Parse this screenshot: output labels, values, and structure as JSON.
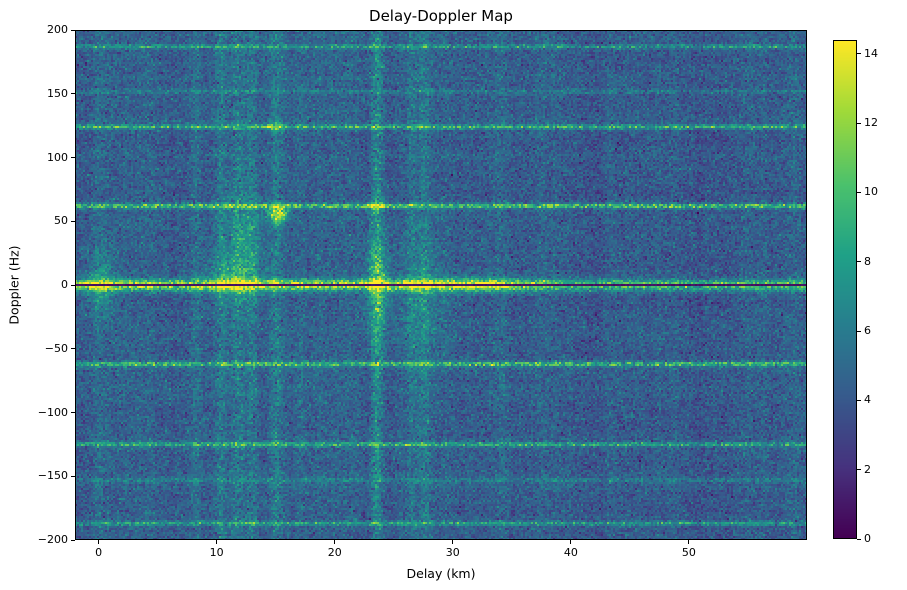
{
  "chart_data": {
    "type": "heatmap",
    "title": "Delay-Doppler Map",
    "xlabel": "Delay (km)",
    "ylabel": "Doppler (Hz)",
    "xlim": [
      -2,
      60
    ],
    "ylim": [
      -200,
      200
    ],
    "x_ticks": [
      {
        "value": 0,
        "label": "0"
      },
      {
        "value": 10,
        "label": "10"
      },
      {
        "value": 20,
        "label": "20"
      },
      {
        "value": 30,
        "label": "30"
      },
      {
        "value": 40,
        "label": "40"
      },
      {
        "value": 50,
        "label": "50"
      }
    ],
    "y_ticks": [
      {
        "value": 200,
        "label": "200"
      },
      {
        "value": 150,
        "label": "150"
      },
      {
        "value": 100,
        "label": "100"
      },
      {
        "value": 50,
        "label": "50"
      },
      {
        "value": 0,
        "label": "0"
      },
      {
        "value": -50,
        "label": "−50"
      },
      {
        "value": -100,
        "label": "−100"
      },
      {
        "value": -150,
        "label": "−150"
      },
      {
        "value": -200,
        "label": "−200"
      }
    ],
    "colormap": "viridis",
    "vmin": 0,
    "vmax": 14.4,
    "colorbar_ticks": [
      0,
      2,
      4,
      6,
      8,
      10,
      12,
      14
    ],
    "noise": {
      "background": 4.3,
      "std": 0.95
    },
    "horizontal_lines": [
      {
        "doppler": 187,
        "intensity": 4.0,
        "width": 1.2
      },
      {
        "doppler": 152,
        "intensity": 1.8,
        "width": 1.2
      },
      {
        "doppler": 124,
        "intensity": 5.2,
        "width": 1.2
      },
      {
        "doppler": 62,
        "intensity": 6.2,
        "width": 1.3
      },
      {
        "doppler": -62,
        "intensity": 5.6,
        "width": 1.3
      },
      {
        "doppler": -125,
        "intensity": 4.8,
        "width": 1.2
      },
      {
        "doppler": -153,
        "intensity": 1.9,
        "width": 1.2
      },
      {
        "doppler": -187,
        "intensity": 3.8,
        "width": 1.2
      }
    ],
    "vertical_streaks": [
      {
        "delay": 0.1,
        "intensity": 0.9,
        "width": 0.35
      },
      {
        "delay": 4.2,
        "intensity": 0.7,
        "width": 0.35
      },
      {
        "delay": 8.2,
        "intensity": 1.1,
        "width": 0.35
      },
      {
        "delay": 10.4,
        "intensity": 1.8,
        "width": 0.35
      },
      {
        "delay": 11.8,
        "intensity": 2.2,
        "width": 0.4
      },
      {
        "delay": 13.0,
        "intensity": 1.8,
        "width": 0.35
      },
      {
        "delay": 15.1,
        "intensity": 2.0,
        "width": 0.35
      },
      {
        "delay": 17.0,
        "intensity": 0.8,
        "width": 0.35
      },
      {
        "delay": 23.6,
        "intensity": 3.0,
        "width": 0.35
      },
      {
        "delay": 26.5,
        "intensity": 1.3,
        "width": 0.35
      },
      {
        "delay": 27.6,
        "intensity": 1.6,
        "width": 0.35
      },
      {
        "delay": 34.0,
        "intensity": 0.9,
        "width": 0.35
      }
    ],
    "bright_spots": [
      {
        "delay": 15.2,
        "doppler": 56,
        "intensity": 9.0,
        "sigma_delay": 0.6,
        "sigma_doppler": 4.5
      },
      {
        "delay": 14.9,
        "doppler": 124,
        "intensity": 4.5,
        "sigma_delay": 0.5,
        "sigma_doppler": 2.5
      },
      {
        "delay": 11.5,
        "doppler": 6,
        "intensity": 3.5,
        "sigma_delay": 1.6,
        "sigma_doppler": 14
      },
      {
        "delay": 12.4,
        "doppler": 40,
        "intensity": 2.2,
        "sigma_delay": 1.2,
        "sigma_doppler": 28
      },
      {
        "delay": 23.6,
        "doppler": 0,
        "intensity": 4.5,
        "sigma_delay": 0.7,
        "sigma_doppler": 28
      },
      {
        "delay": 23.6,
        "doppler": 62,
        "intensity": 4.0,
        "sigma_delay": 0.5,
        "sigma_doppler": 3.5
      },
      {
        "delay": 0.2,
        "doppler": 0,
        "intensity": 3.0,
        "sigma_delay": 1.0,
        "sigma_doppler": 18
      },
      {
        "delay": 27.3,
        "doppler": -8,
        "intensity": 2.0,
        "sigma_delay": 1.6,
        "sigma_doppler": 30
      },
      {
        "delay": 31.5,
        "doppler": 0,
        "intensity": 2.5,
        "sigma_delay": 2.5,
        "sigma_doppler": 5
      }
    ],
    "zero_band": {
      "doppler": 0,
      "sigma": 3.2,
      "intensity": 7.5
    },
    "zero_line": {
      "doppler": 0,
      "half_width": 0.8,
      "value": 0.4
    }
  }
}
